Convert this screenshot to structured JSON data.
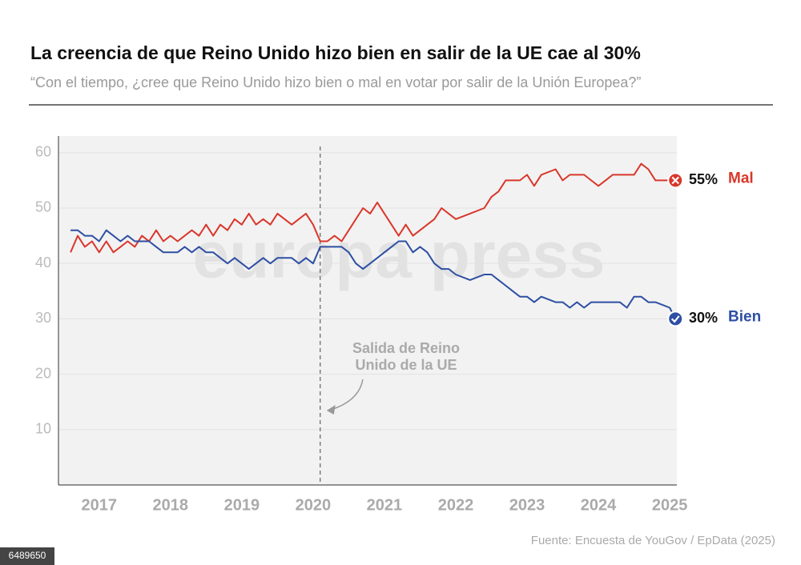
{
  "chart_data": {
    "type": "line",
    "title": "La creencia de que Reino Unido hizo bien en salir de la UE cae al 30%",
    "subtitle": "“Con el tiempo, ¿cree que Reino Unido hizo bien o mal en votar por salir de la Unión Europea?”",
    "watermark": "europa press",
    "source": "Fuente: Encuesta de YouGov / EpData (2025)",
    "image_id": "6489650",
    "annotation": {
      "lines": [
        "Salida de Reino",
        "Unido de la UE"
      ],
      "x": 2020.1
    },
    "x": [
      2016.6,
      2016.7,
      2016.8,
      2016.9,
      2017.0,
      2017.1,
      2017.2,
      2017.3,
      2017.4,
      2017.5,
      2017.6,
      2017.7,
      2017.8,
      2017.9,
      2018.0,
      2018.1,
      2018.2,
      2018.3,
      2018.4,
      2018.5,
      2018.6,
      2018.7,
      2018.8,
      2018.9,
      2019.0,
      2019.1,
      2019.2,
      2019.3,
      2019.4,
      2019.5,
      2019.6,
      2019.7,
      2019.8,
      2019.9,
      2020.0,
      2020.1,
      2020.2,
      2020.3,
      2020.4,
      2020.5,
      2020.6,
      2020.7,
      2020.8,
      2020.9,
      2021.0,
      2021.1,
      2021.2,
      2021.3,
      2021.4,
      2021.5,
      2021.6,
      2021.7,
      2021.8,
      2021.9,
      2022.0,
      2022.2,
      2022.4,
      2022.5,
      2022.6,
      2022.7,
      2022.8,
      2022.9,
      2023.0,
      2023.1,
      2023.2,
      2023.4,
      2023.5,
      2023.6,
      2023.7,
      2023.8,
      2023.9,
      2024.0,
      2024.1,
      2024.2,
      2024.3,
      2024.4,
      2024.5,
      2024.6,
      2024.7,
      2024.8,
      2025.0,
      2025.08
    ],
    "series": [
      {
        "name": "Mal",
        "color": "#d9372b",
        "label": "55%",
        "values": [
          42,
          45,
          43,
          44,
          42,
          44,
          42,
          43,
          44,
          43,
          45,
          44,
          46,
          44,
          45,
          44,
          45,
          46,
          45,
          47,
          45,
          47,
          46,
          48,
          47,
          49,
          47,
          48,
          47,
          49,
          48,
          47,
          48,
          49,
          47,
          44,
          44,
          45,
          44,
          46,
          48,
          50,
          49,
          51,
          49,
          47,
          45,
          47,
          45,
          46,
          47,
          48,
          50,
          49,
          48,
          49,
          50,
          52,
          53,
          55,
          55,
          55,
          56,
          54,
          56,
          57,
          55,
          56,
          56,
          56,
          55,
          54,
          55,
          56,
          56,
          56,
          56,
          58,
          57,
          55,
          55,
          55
        ]
      },
      {
        "name": "Bien",
        "color": "#2e4fa3",
        "label": "30%",
        "values": [
          46,
          46,
          45,
          45,
          44,
          46,
          45,
          44,
          45,
          44,
          44,
          44,
          43,
          42,
          42,
          42,
          43,
          42,
          43,
          42,
          42,
          41,
          40,
          41,
          40,
          39,
          40,
          41,
          40,
          41,
          41,
          41,
          40,
          41,
          40,
          43,
          43,
          43,
          43,
          42,
          40,
          39,
          40,
          41,
          42,
          43,
          44,
          44,
          42,
          43,
          42,
          40,
          39,
          39,
          38,
          37,
          38,
          38,
          37,
          36,
          35,
          34,
          34,
          33,
          34,
          33,
          33,
          32,
          33,
          32,
          33,
          33,
          33,
          33,
          33,
          32,
          34,
          34,
          33,
          33,
          32,
          30
        ]
      }
    ],
    "xlim": [
      2016.43,
      2025.1
    ],
    "xticks": [
      2017,
      2018,
      2019,
      2020,
      2021,
      2022,
      2023,
      2024,
      2025
    ],
    "ylim": [
      0,
      63
    ],
    "yticks": [
      10,
      20,
      30,
      40,
      50,
      60
    ],
    "grid": true
  }
}
